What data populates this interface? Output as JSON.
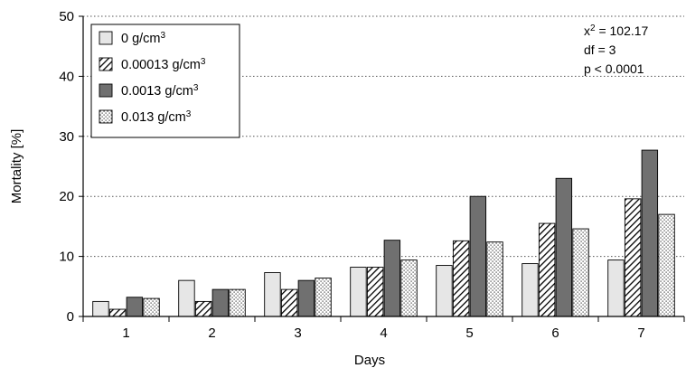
{
  "chart_data": {
    "type": "bar",
    "title": "",
    "xlabel": "Days",
    "ylabel": "Mortality [%]",
    "ylim": [
      0,
      50
    ],
    "yticks": [
      "0",
      "10",
      "20",
      "30",
      "40",
      "50"
    ],
    "grid": "horizontal dotted",
    "legend_position": "top-left",
    "categories": [
      "1",
      "2",
      "3",
      "4",
      "5",
      "6",
      "7"
    ],
    "series": [
      {
        "name": "0 g/cm",
        "unit_superscript": "3",
        "pattern": "light-gray",
        "values": [
          2.5,
          6.0,
          7.3,
          8.2,
          8.5,
          8.8,
          9.4
        ]
      },
      {
        "name": "0.00013 g/cm",
        "unit_superscript": "3",
        "pattern": "hatch",
        "values": [
          1.2,
          2.5,
          4.5,
          8.2,
          12.6,
          15.5,
          19.6
        ]
      },
      {
        "name": "0.0013 g/cm",
        "unit_superscript": "3",
        "pattern": "dark-gray",
        "values": [
          3.2,
          4.5,
          6.0,
          12.7,
          20.0,
          23.0,
          27.7
        ]
      },
      {
        "name": "0.013 g/cm",
        "unit_superscript": "3",
        "pattern": "dots",
        "values": [
          3.0,
          4.5,
          6.4,
          9.4,
          12.4,
          14.6,
          17.0
        ]
      }
    ],
    "annotations": {
      "chi_label": "x",
      "chi_superscript": "2",
      "chi_value": " = 102.17",
      "df": "df = 3",
      "p": "p < 0.0001"
    }
  }
}
